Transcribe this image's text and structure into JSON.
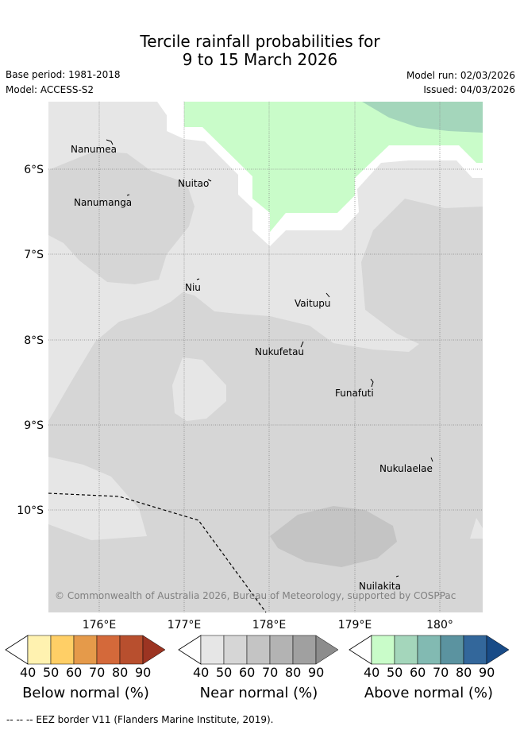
{
  "title": {
    "line1": "Tercile rainfall probabilities for",
    "line2": "9 to 15 March 2026"
  },
  "header": {
    "base_period": "Base period: 1981-2018",
    "model": "Model: ACCESS-S2",
    "model_run": "Model run: 02/03/2026",
    "issued": "Issued: 04/03/2026"
  },
  "map": {
    "lat_labels": [
      "6°S",
      "7°S",
      "8°S",
      "9°S",
      "10°S"
    ],
    "lon_labels": [
      "176°E",
      "177°E",
      "178°E",
      "179°E",
      "180°"
    ],
    "places": [
      "Nanumea",
      "Nuitao",
      "Nanumanga",
      "Niu",
      "Vaitupu",
      "Nukufetau",
      "Funafuti",
      "Nukulaelae",
      "Nuilakita"
    ],
    "copyright": "© Commonwealth of Australia 2026, Bureau of Meteorology, supported by COSPPac"
  },
  "colorbars": [
    {
      "title": "Below normal (%)",
      "ticks": [
        "40",
        "50",
        "60",
        "70",
        "80",
        "90"
      ],
      "colors": [
        "#fff2b0",
        "#ffcf66",
        "#e59a4a",
        "#d4693a",
        "#b84f2e",
        "#9c3422"
      ]
    },
    {
      "title": "Near normal (%)",
      "ticks": [
        "40",
        "50",
        "60",
        "70",
        "80",
        "90"
      ],
      "colors": [
        "#e6e6e6",
        "#d6d6d6",
        "#c4c4c4",
        "#b3b3b3",
        "#a0a0a0",
        "#8c8c8c"
      ]
    },
    {
      "title": "Above normal (%)",
      "ticks": [
        "40",
        "50",
        "60",
        "70",
        "80",
        "90"
      ],
      "colors": [
        "#c9fcc9",
        "#a4d6bb",
        "#82bab2",
        "#5b93a0",
        "#33679b",
        "#184b87"
      ]
    }
  ],
  "footer": "--  --  -- EEZ border V11 (Flanders Marine Institute, 2019)."
}
